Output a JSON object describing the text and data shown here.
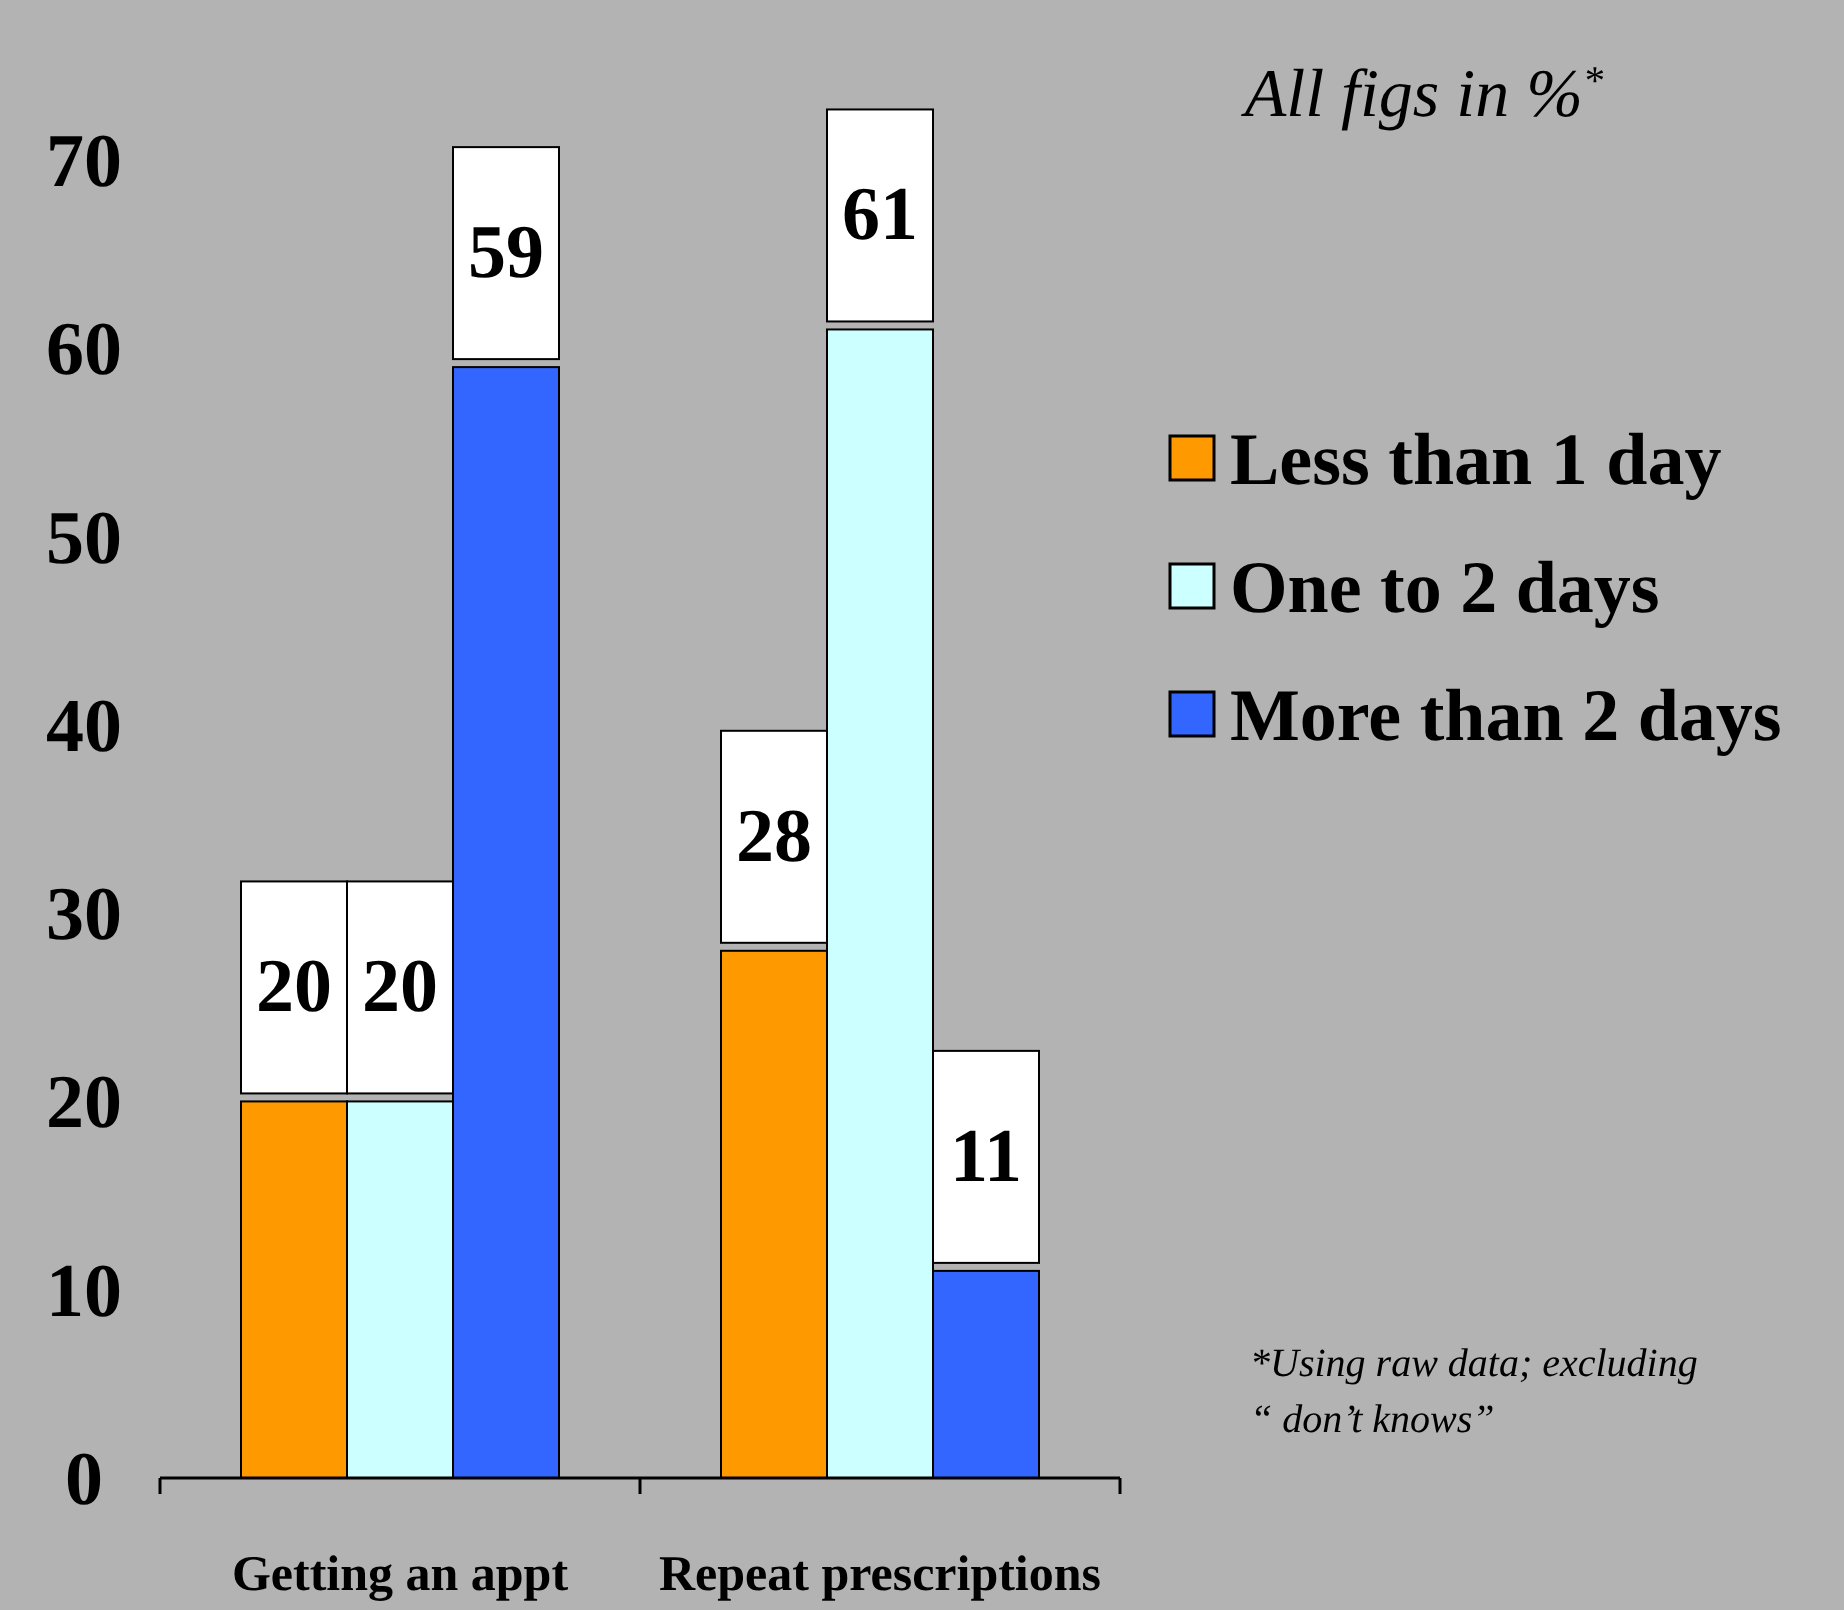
{
  "chart_data": {
    "type": "bar",
    "title": "All figs in %$^{*}$",
    "categories": [
      "Getting an appt",
      "Repeat prescriptions"
    ],
    "series": [
      {
        "name": "Less than 1 day",
        "color": "#ff9900",
        "values": [
          20,
          28
        ]
      },
      {
        "name": "One to 2 days",
        "color": "#ccffff",
        "values": [
          20,
          61
        ]
      },
      {
        "name": "More than 2 days",
        "color": "#3366ff",
        "values": [
          59,
          11
        ]
      }
    ],
    "ylim": [
      0,
      70
    ],
    "yticks": [
      0,
      10,
      20,
      30,
      40,
      50,
      60,
      70
    ],
    "grid": false,
    "legend": "right",
    "data_labels": true,
    "annotations": [
      "*Using raw data; excluding\n“ don’t knows”"
    ]
  }
}
